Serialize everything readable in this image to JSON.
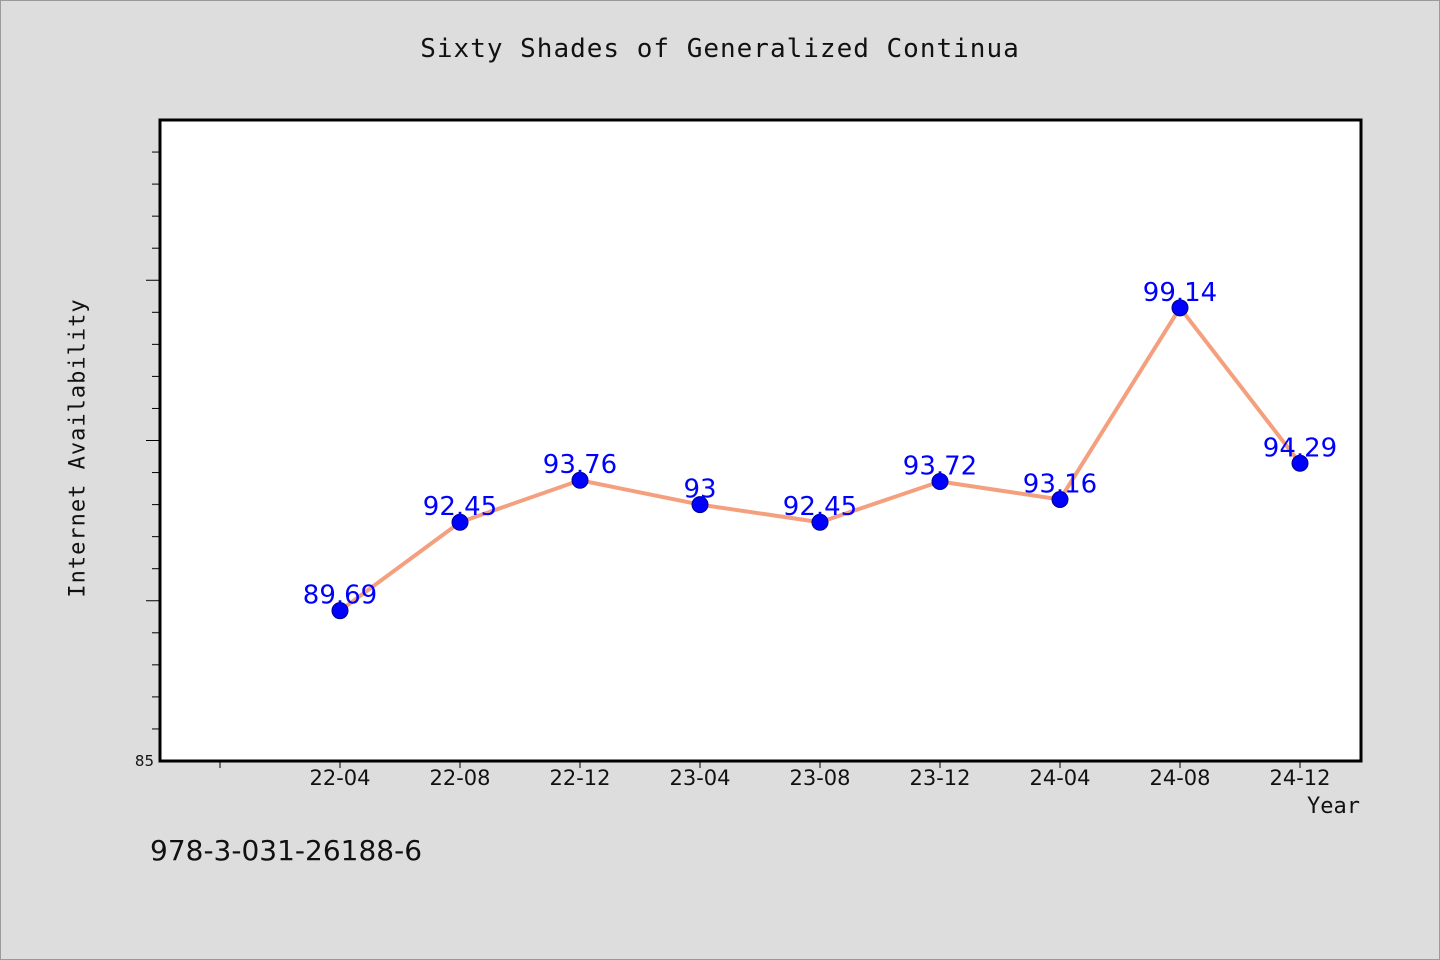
{
  "chart_data": {
    "type": "line",
    "title": "Sixty Shades of Generalized Continua",
    "xlabel": "Year",
    "ylabel": "Internet Availability",
    "categories": [
      "22-04",
      "22-08",
      "22-12",
      "23-04",
      "23-08",
      "23-12",
      "24-04",
      "24-08",
      "24-12"
    ],
    "series": [
      {
        "values": [
          89.69,
          92.45,
          93.76,
          93,
          92.45,
          93.72,
          93.16,
          99.14,
          94.29
        ],
        "labels": [
          "89.69",
          "92.45",
          "93.76",
          "93",
          "92.45",
          "93.72",
          "93.16",
          "99.14",
          "94.29"
        ]
      }
    ],
    "yticks": [
      "85"
    ],
    "ylim": [
      85,
      105
    ],
    "grid": false,
    "colors": {
      "line": "#f4a07e",
      "marker": "#0000ff",
      "label": "#0000ff",
      "background": "#dddddd",
      "plot_area": "#ffffff"
    }
  },
  "footer": {
    "code": "978-3-031-26188-6"
  }
}
